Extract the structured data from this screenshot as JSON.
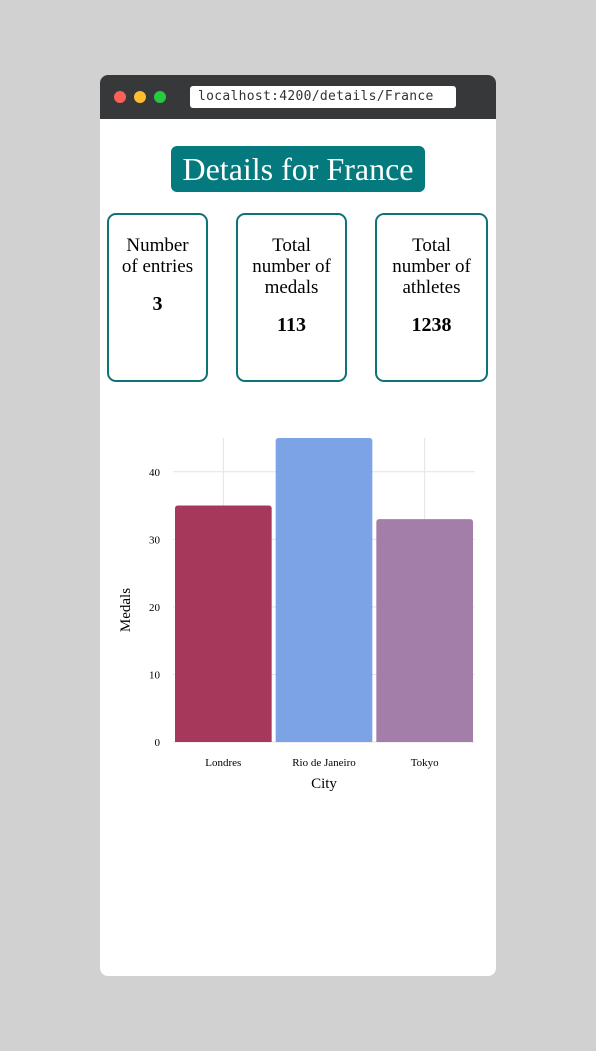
{
  "browser": {
    "url": "localhost:4200/details/France"
  },
  "page": {
    "title": "Details for France"
  },
  "stats": [
    {
      "label": "Number of entries",
      "value": "3"
    },
    {
      "label": "Total number of medals",
      "value": "113"
    },
    {
      "label": "Total number of athletes",
      "value": "1238"
    }
  ],
  "colors": {
    "title_bg": "#047a7f",
    "card_border": "#0d7377"
  },
  "chart_data": {
    "type": "bar",
    "categories": [
      "Londres",
      "Rio de Janeiro",
      "Tokyo"
    ],
    "values": [
      35,
      45,
      33
    ],
    "colors": [
      "#a6385c",
      "#7ba3e6",
      "#a27ea9"
    ],
    "xlabel": "City",
    "ylabel": "Medals",
    "yticks": [
      0,
      10,
      20,
      30,
      40
    ],
    "ylim": [
      0,
      45
    ],
    "grid": true
  }
}
